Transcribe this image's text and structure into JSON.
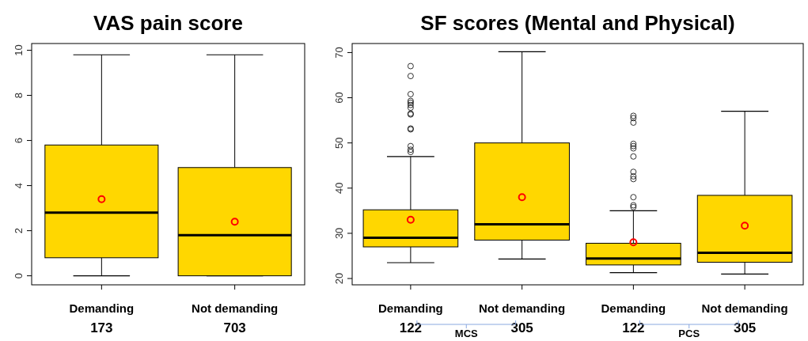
{
  "chart_data": [
    {
      "type": "box",
      "title": "VAS pain score",
      "categories": [
        "Demanding\n173",
        "Not demanding\n703"
      ],
      "series": [
        {
          "color": "#ffd700",
          "boxes": [
            {
              "low": 0,
              "q1": 0.8,
              "median": 2.8,
              "q3": 5.8,
              "high": 9.8,
              "mean": 3.4
            },
            {
              "low": 0,
              "q1": 0,
              "median": 1.8,
              "q3": 4.8,
              "high": 9.8,
              "mean": 2.4
            }
          ]
        }
      ],
      "ylim": [
        -0.4,
        10.3
      ],
      "yticks": [
        0,
        2,
        4,
        6,
        8,
        10
      ],
      "grid": false
    },
    {
      "type": "box",
      "title": "SF scores (Mental and Physical)",
      "categories": [
        "Demanding\n122",
        "Not demanding\n305",
        "Demanding\n122",
        "Not demanding\n305"
      ],
      "series": [
        {
          "color": "#ffd700",
          "boxes": [
            {
              "low": 23.5,
              "q1": 27,
              "median": 29,
              "q3": 35.2,
              "high": 47,
              "mean": 33,
              "outliers": [
                48,
                48.5,
                49.3,
                53,
                53.2,
                56.3,
                56.5,
                57.8,
                58.4,
                58.9,
                59.3,
                60.8,
                64.8,
                67
              ]
            },
            {
              "low": 24.3,
              "q1": 28.5,
              "median": 32,
              "q3": 50,
              "high": 70.2,
              "mean": 38
            },
            {
              "low": 21.3,
              "q1": 23,
              "median": 24.4,
              "q3": 27.8,
              "high": 35,
              "mean": 28,
              "outliers": [
                35.8,
                36.2,
                38,
                42,
                42.6,
                43.6,
                47,
                48.8,
                49.3,
                49.8,
                54.5,
                55.5,
                56
              ]
            },
            {
              "low": 21,
              "q1": 23.6,
              "median": 25.7,
              "q3": 38.4,
              "high": 57,
              "mean": 31.7
            }
          ]
        }
      ],
      "ylim": [
        18.6,
        72
      ],
      "yticks": [
        20,
        30,
        40,
        50,
        60,
        70
      ],
      "grid": false,
      "annotations": [
        "MCS",
        "PCS"
      ]
    }
  ]
}
